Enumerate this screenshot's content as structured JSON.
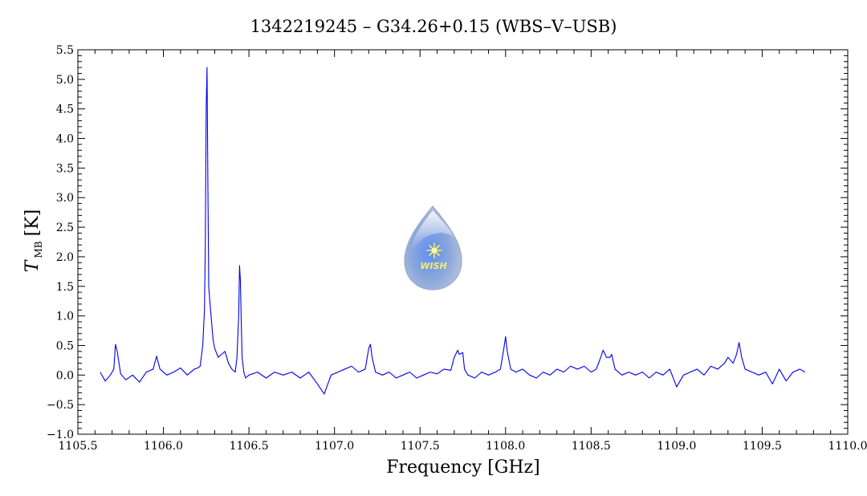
{
  "chart_data": {
    "type": "line",
    "title": "1342219245 – G34.26+0.15 (WBS–V–USB)",
    "xlabel": "Frequency [GHz]",
    "ylabel_main": "T",
    "ylabel_sub": "MB",
    "ylabel_unit": "[K]",
    "xlim": [
      1105.5,
      1110.0
    ],
    "ylim": [
      -1.0,
      5.5
    ],
    "x_ticks": [
      "1105.5",
      "1106.0",
      "1106.5",
      "1107.0",
      "1107.5",
      "1108.0",
      "1108.5",
      "1109.0",
      "1109.5",
      "1110.0"
    ],
    "y_ticks": [
      "−1.0",
      "−0.5",
      "0.0",
      "0.5",
      "1.0",
      "1.5",
      "2.0",
      "2.5",
      "3.0",
      "3.5",
      "4.0",
      "4.5",
      "5.0",
      "5.5"
    ],
    "grid": false,
    "line_color": "#0000ee",
    "series": [
      {
        "x": [
          1105.63,
          1105.66,
          1105.69,
          1105.71,
          1105.72,
          1105.73,
          1105.75,
          1105.78,
          1105.82,
          1105.86,
          1105.9,
          1105.94,
          1105.96,
          1105.98,
          1106.02,
          1106.06,
          1106.1,
          1106.14,
          1106.18,
          1106.2,
          1106.215,
          1106.23,
          1106.24,
          1106.245,
          1106.25,
          1106.255,
          1106.26,
          1106.265,
          1106.27,
          1106.28,
          1106.29,
          1106.3,
          1106.32,
          1106.34,
          1106.36,
          1106.38,
          1106.4,
          1106.42,
          1106.43,
          1106.44,
          1106.445,
          1106.45,
          1106.455,
          1106.46,
          1106.47,
          1106.48,
          1106.5,
          1106.55,
          1106.6,
          1106.65,
          1106.7,
          1106.75,
          1106.8,
          1106.85,
          1106.9,
          1106.94,
          1106.98,
          1107.02,
          1107.06,
          1107.1,
          1107.14,
          1107.18,
          1107.2,
          1107.21,
          1107.22,
          1107.24,
          1107.28,
          1107.32,
          1107.36,
          1107.4,
          1107.44,
          1107.48,
          1107.52,
          1107.56,
          1107.6,
          1107.64,
          1107.68,
          1107.7,
          1107.72,
          1107.73,
          1107.75,
          1107.76,
          1107.78,
          1107.82,
          1107.86,
          1107.9,
          1107.94,
          1107.97,
          1107.99,
          1108.0,
          1108.01,
          1108.03,
          1108.06,
          1108.1,
          1108.14,
          1108.18,
          1108.22,
          1108.26,
          1108.3,
          1108.34,
          1108.38,
          1108.42,
          1108.46,
          1108.5,
          1108.53,
          1108.55,
          1108.57,
          1108.59,
          1108.61,
          1108.62,
          1108.64,
          1108.68,
          1108.72,
          1108.76,
          1108.8,
          1108.84,
          1108.88,
          1108.92,
          1108.96,
          1109.0,
          1109.04,
          1109.08,
          1109.12,
          1109.16,
          1109.2,
          1109.24,
          1109.28,
          1109.3,
          1109.33,
          1109.35,
          1109.365,
          1109.38,
          1109.4,
          1109.44,
          1109.48,
          1109.52,
          1109.56,
          1109.6,
          1109.64,
          1109.68,
          1109.72,
          1109.75
        ],
        "y": [
          0.05,
          -0.1,
          0.0,
          0.1,
          0.52,
          0.4,
          0.02,
          -0.08,
          0.0,
          -0.12,
          0.05,
          0.1,
          0.32,
          0.1,
          0.0,
          0.05,
          0.12,
          0.0,
          0.1,
          0.12,
          0.15,
          0.5,
          1.1,
          2.2,
          4.5,
          5.2,
          3.2,
          1.5,
          1.3,
          0.95,
          0.6,
          0.45,
          0.3,
          0.35,
          0.4,
          0.2,
          0.1,
          0.05,
          0.3,
          1.0,
          1.85,
          1.6,
          0.9,
          0.3,
          0.05,
          -0.05,
          0.0,
          0.05,
          -0.05,
          0.05,
          0.0,
          0.05,
          -0.05,
          0.05,
          -0.15,
          -0.32,
          0.0,
          0.05,
          0.1,
          0.15,
          0.05,
          0.1,
          0.45,
          0.52,
          0.3,
          0.05,
          0.0,
          0.05,
          -0.05,
          0.0,
          0.05,
          -0.05,
          0.0,
          0.05,
          0.02,
          0.1,
          0.08,
          0.3,
          0.42,
          0.35,
          0.38,
          0.1,
          0.0,
          -0.05,
          0.05,
          0.0,
          0.05,
          0.1,
          0.45,
          0.65,
          0.4,
          0.1,
          0.05,
          0.1,
          0.0,
          -0.05,
          0.05,
          0.0,
          0.1,
          0.05,
          0.15,
          0.1,
          0.15,
          0.05,
          0.1,
          0.25,
          0.42,
          0.3,
          0.3,
          0.35,
          0.1,
          0.0,
          0.05,
          0.0,
          0.05,
          -0.05,
          0.05,
          0.0,
          0.1,
          -0.2,
          0.0,
          0.05,
          0.1,
          0.0,
          0.15,
          0.1,
          0.2,
          0.3,
          0.2,
          0.35,
          0.55,
          0.3,
          0.1,
          0.05,
          0.0,
          0.05,
          -0.15,
          0.1,
          -0.1,
          0.05,
          0.1,
          0.05
        ]
      }
    ]
  },
  "logo": {
    "text": "WISH"
  }
}
